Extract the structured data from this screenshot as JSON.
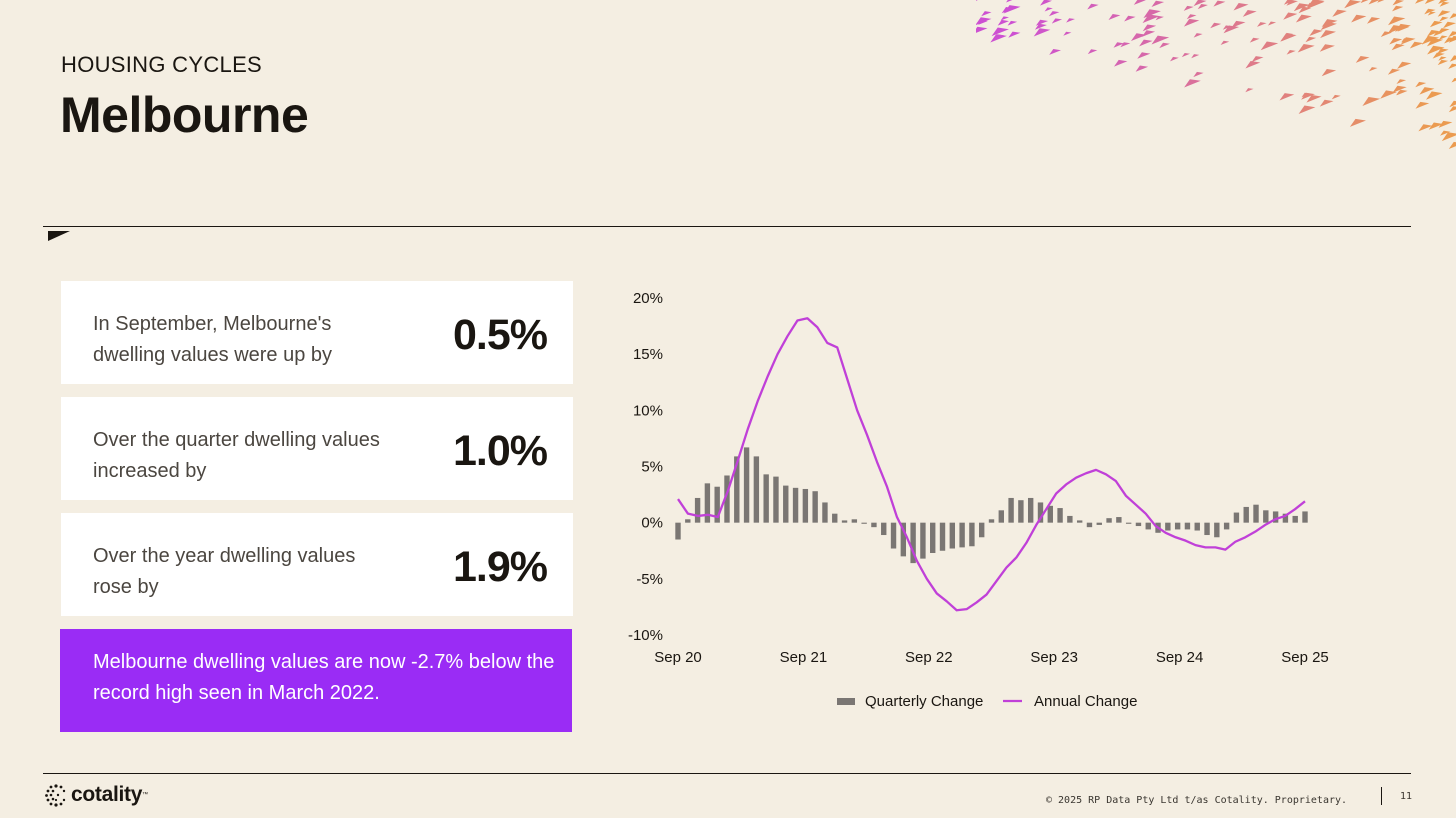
{
  "header": {
    "eyebrow": "HOUSING CYCLES",
    "title": "Melbourne"
  },
  "cards": [
    {
      "text": "In September, Melbourne's dwelling values were up by",
      "value": "0.5%"
    },
    {
      "text": "Over the quarter dwelling values  increased by",
      "value": "1.0%"
    },
    {
      "text": "Over the year dwelling values rose by",
      "value": "1.9%"
    }
  ],
  "callout": {
    "text": "Melbourne dwelling values are now -2.7% below the record high seen in March 2022."
  },
  "colors": {
    "accent_purple": "#9a2cf5",
    "line_magenta": "#c040d8",
    "bar_grey": "#7a7673",
    "background": "#f4eee2"
  },
  "chart_data": {
    "type": "bar",
    "x_tick_labels": [
      "Sep 20",
      "Sep 21",
      "Sep 22",
      "Sep 23",
      "Sep 24",
      "Sep 25"
    ],
    "y_tick_labels": [
      "20%",
      "15%",
      "10%",
      "5%",
      "0%",
      "-5%",
      "-10%"
    ],
    "ylim": [
      -10,
      20
    ],
    "legend_position": "bottom",
    "grid": false,
    "series": [
      {
        "name": "Quarterly Change",
        "type": "bar",
        "values": [
          -1.5,
          0.3,
          2.2,
          3.5,
          3.2,
          4.2,
          5.9,
          6.7,
          5.9,
          4.3,
          4.1,
          3.3,
          3.1,
          3.0,
          2.8,
          1.8,
          0.8,
          0.2,
          0.3,
          -0.1,
          -0.4,
          -1.1,
          -2.3,
          -3.0,
          -3.6,
          -3.2,
          -2.7,
          -2.5,
          -2.3,
          -2.2,
          -2.1,
          -1.3,
          0.3,
          1.1,
          2.2,
          2.0,
          2.2,
          1.8,
          1.5,
          1.3,
          0.6,
          0.2,
          -0.4,
          -0.2,
          0.4,
          0.5,
          -0.1,
          -0.3,
          -0.6,
          -0.9,
          -0.7,
          -0.6,
          -0.6,
          -0.7,
          -1.1,
          -1.3,
          -0.6,
          0.9,
          1.4,
          1.6,
          1.1,
          1.0,
          0.8,
          0.6,
          1.0
        ]
      },
      {
        "name": "Annual Change",
        "type": "line",
        "values": [
          2.1,
          0.8,
          0.6,
          0.7,
          0.5,
          2.8,
          5.5,
          8.3,
          10.8,
          13.0,
          15.0,
          16.6,
          18.0,
          18.2,
          17.4,
          16.0,
          15.6,
          12.8,
          10.0,
          7.8,
          5.4,
          3.2,
          0.5,
          -1.3,
          -3.4,
          -5.0,
          -6.3,
          -7.0,
          -7.8,
          -7.7,
          -7.1,
          -6.4,
          -5.2,
          -4.0,
          -3.1,
          -1.8,
          -0.2,
          1.2,
          2.6,
          3.4,
          4.0,
          4.4,
          4.7,
          4.3,
          3.7,
          2.4,
          1.6,
          0.8,
          -0.3,
          -0.9,
          -1.3,
          -1.6,
          -2.0,
          -2.2,
          -2.2,
          -2.4,
          -1.7,
          -1.3,
          -0.8,
          -0.2,
          0.3,
          0.6,
          1.2,
          1.9
        ]
      }
    ]
  },
  "footer": {
    "logo_text": "cotality",
    "logo_tm": "™",
    "copyright": "© 2025 RP Data Pty Ltd t/as Cotality. Proprietary.",
    "page_number": "11"
  }
}
